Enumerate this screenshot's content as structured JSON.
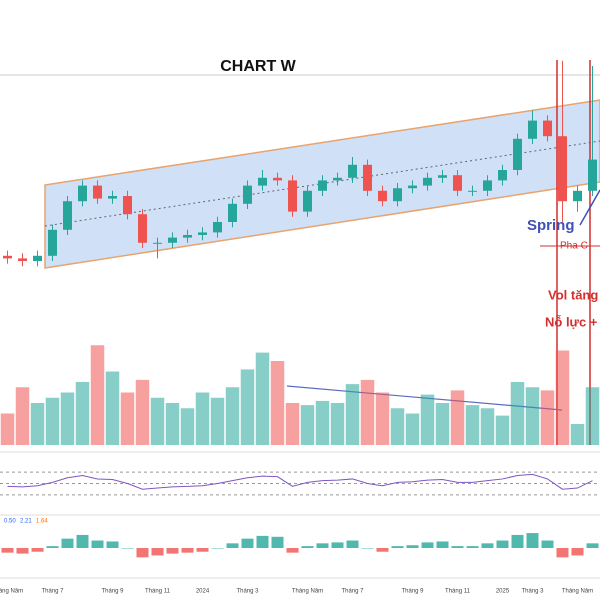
{
  "chart_data": {
    "type": "candlestick",
    "title": "CHART W",
    "categories": [
      "Tháng Năm",
      null,
      null,
      "Tháng 7",
      null,
      null,
      null,
      "Tháng 9",
      null,
      null,
      "Tháng 11",
      null,
      null,
      "2024",
      null,
      null,
      "Tháng 3",
      null,
      null,
      null,
      "Tháng Năm",
      null,
      null,
      "Tháng 7",
      null,
      null,
      null,
      "Tháng 9",
      null,
      null,
      "Tháng 11",
      null,
      null,
      "2025",
      null,
      "Tháng 3",
      null,
      null,
      "Tháng Năm",
      null
    ],
    "open": [
      17,
      16,
      15,
      17,
      27,
      38,
      44,
      39,
      40,
      33,
      22,
      22,
      24,
      25,
      26,
      30,
      37,
      44,
      47,
      46,
      34,
      42,
      46,
      47,
      52,
      42,
      38,
      43,
      44,
      47,
      48,
      42,
      42,
      46,
      50,
      62,
      69,
      63,
      38,
      42
    ],
    "high": [
      19,
      18,
      19,
      29,
      40,
      46,
      46,
      42,
      42,
      35,
      24,
      26,
      27,
      28,
      32,
      39,
      46,
      50,
      49,
      48,
      44,
      48,
      49,
      55,
      54,
      44,
      45,
      46,
      49,
      50,
      50,
      44,
      48,
      52,
      64,
      73,
      71,
      92,
      44,
      90
    ],
    "low": [
      14,
      13,
      13,
      15,
      25,
      36,
      37,
      37,
      31,
      20,
      16,
      20,
      22,
      23,
      24,
      28,
      35,
      42,
      44,
      32,
      32,
      40,
      44,
      45,
      40,
      36,
      36,
      41,
      42,
      45,
      40,
      40,
      40,
      44,
      48,
      60,
      61,
      30,
      34,
      40
    ],
    "close": [
      16,
      15,
      17,
      27,
      38,
      44,
      39,
      40,
      33,
      22,
      22,
      24,
      25,
      26,
      30,
      37,
      44,
      47,
      46,
      34,
      42,
      46,
      47,
      52,
      42,
      38,
      43,
      44,
      47,
      48,
      42,
      42,
      46,
      50,
      62,
      69,
      63,
      38,
      42,
      54
    ],
    "ylim": [
      0,
      100
    ],
    "up_color": "#26a69a",
    "down_color": "#ef5350",
    "volume": [
      30,
      55,
      40,
      45,
      50,
      60,
      95,
      70,
      50,
      62,
      45,
      40,
      35,
      50,
      45,
      55,
      72,
      88,
      80,
      40,
      38,
      42,
      40,
      58,
      62,
      50,
      35,
      30,
      48,
      40,
      52,
      38,
      35,
      28,
      60,
      55,
      52,
      90,
      20,
      55
    ],
    "volume_ylim": [
      0,
      100
    ],
    "rsi": [
      45,
      44,
      46,
      52,
      60,
      64,
      58,
      57,
      50,
      40,
      42,
      44,
      45,
      46,
      50,
      55,
      60,
      63,
      62,
      45,
      52,
      55,
      56,
      58,
      50,
      46,
      52,
      53,
      56,
      57,
      52,
      52,
      55,
      58,
      64,
      66,
      58,
      40,
      42,
      55
    ],
    "rsi_ylim": [
      0,
      100
    ],
    "rsi_levels": [
      30,
      50,
      70
    ],
    "rsi_color": "#7e57c2",
    "macd_hist": [
      -0.5,
      -0.6,
      -0.4,
      0.2,
      1.0,
      1.4,
      0.8,
      0.7,
      0,
      -1,
      -0.8,
      -0.6,
      -0.5,
      -0.4,
      0,
      0.5,
      1.0,
      1.3,
      1.2,
      -0.5,
      0.2,
      0.5,
      0.6,
      0.8,
      0,
      -0.4,
      0.2,
      0.3,
      0.6,
      0.7,
      0.2,
      0.2,
      0.5,
      0.8,
      1.4,
      1.6,
      0.8,
      -1,
      -0.8,
      0.5
    ],
    "macd_ylim": [
      -3,
      3
    ],
    "macd_readout": [
      "0.50",
      "2.21",
      "1.64"
    ],
    "annotations": {
      "spring": "Spring",
      "phase": "Pha C",
      "vol": "Vol tăng",
      "effort": "Nỗ lực +"
    }
  }
}
